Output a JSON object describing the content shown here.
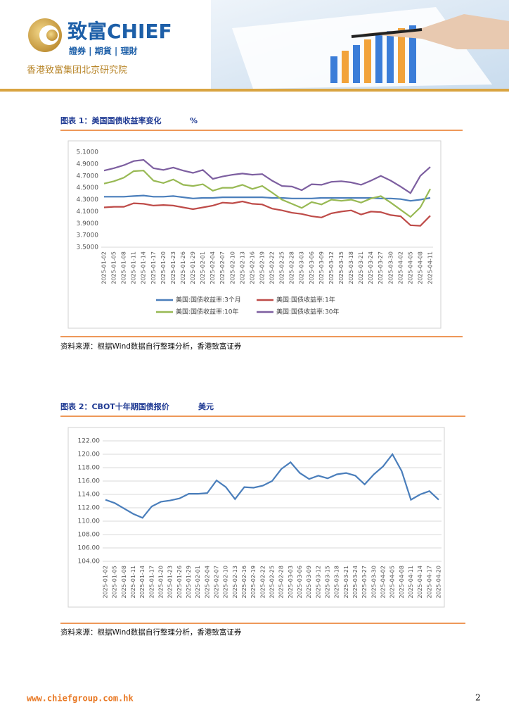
{
  "header": {
    "brand": "致富CHIEF",
    "tagline": "證券 | 期貨 | 理財",
    "institute": "香港致富集团北京研究院"
  },
  "chart_data": [
    {
      "type": "line",
      "title": "图表 1：美国国债收益率变化",
      "unit": "%",
      "categories": [
        "2025-01-02",
        "2025-01-05",
        "2025-01-08",
        "2025-01-11",
        "2025-01-14",
        "2025-01-17",
        "2025-01-20",
        "2025-01-23",
        "2025-01-26",
        "2025-01-29",
        "2025-02-01",
        "2025-02-04",
        "2025-02-07",
        "2025-02-10",
        "2025-02-13",
        "2025-02-16",
        "2025-02-19",
        "2025-02-22",
        "2025-02-25",
        "2025-02-28",
        "2025-03-03",
        "2025-03-06",
        "2025-03-09",
        "2025-03-12",
        "2025-03-15",
        "2025-03-18",
        "2025-03-21",
        "2025-03-24",
        "2025-03-27",
        "2025-03-30",
        "2025-04-02",
        "2025-04-05",
        "2025-04-08",
        "2025-04-11"
      ],
      "series": [
        {
          "name": "美国:国债收益率:3个月",
          "color": "#4a7ebb",
          "values": [
            4.35,
            4.35,
            4.35,
            4.36,
            4.37,
            4.35,
            4.35,
            4.36,
            4.34,
            4.32,
            4.33,
            4.33,
            4.34,
            4.34,
            4.34,
            4.34,
            4.34,
            4.33,
            4.33,
            4.32,
            4.32,
            4.32,
            4.33,
            4.33,
            4.33,
            4.33,
            4.33,
            4.33,
            4.32,
            4.32,
            4.31,
            4.28,
            4.3,
            4.33
          ]
        },
        {
          "name": "美国:国债收益率:1年",
          "color": "#be4b48",
          "values": [
            4.17,
            4.18,
            4.18,
            4.24,
            4.23,
            4.2,
            4.21,
            4.2,
            4.17,
            4.14,
            4.17,
            4.2,
            4.25,
            4.24,
            4.27,
            4.23,
            4.22,
            4.15,
            4.12,
            4.08,
            4.06,
            4.02,
            4.0,
            4.07,
            4.1,
            4.12,
            4.05,
            4.1,
            4.09,
            4.04,
            4.02,
            3.87,
            3.86,
            4.03
          ]
        },
        {
          "name": "美国:国债收益率:10年",
          "color": "#98b954",
          "values": [
            4.57,
            4.61,
            4.67,
            4.78,
            4.79,
            4.62,
            4.58,
            4.64,
            4.55,
            4.53,
            4.56,
            4.45,
            4.5,
            4.5,
            4.55,
            4.48,
            4.53,
            4.42,
            4.3,
            4.23,
            4.16,
            4.26,
            4.22,
            4.3,
            4.28,
            4.3,
            4.25,
            4.32,
            4.36,
            4.25,
            4.13,
            4.01,
            4.17,
            4.48
          ]
        },
        {
          "name": "美国:国债收益率:30年",
          "color": "#7d5fa0",
          "values": [
            4.79,
            4.83,
            4.88,
            4.95,
            4.97,
            4.83,
            4.8,
            4.84,
            4.79,
            4.75,
            4.8,
            4.65,
            4.69,
            4.72,
            4.74,
            4.72,
            4.73,
            4.62,
            4.53,
            4.52,
            4.46,
            4.56,
            4.55,
            4.6,
            4.61,
            4.59,
            4.55,
            4.62,
            4.7,
            4.62,
            4.52,
            4.41,
            4.7,
            4.85
          ]
        }
      ],
      "ylim": [
        3.5,
        5.1
      ],
      "yticks": [
        {
          "value": 3.5,
          "label": "3.5000"
        },
        {
          "value": 3.7,
          "label": "3.7000"
        },
        {
          "value": 3.9,
          "label": "3.9000"
        },
        {
          "value": 4.1,
          "label": "4.1000"
        },
        {
          "value": 4.3,
          "label": "4.3000"
        },
        {
          "value": 4.5,
          "label": "4.5000"
        },
        {
          "value": 4.7,
          "label": "4.7000"
        },
        {
          "value": 4.9,
          "label": "4.9000"
        },
        {
          "value": 5.1,
          "label": "5.1000"
        }
      ],
      "grid": false,
      "legend": "bottom",
      "source": "资料来源：根据Wind数据自行整理分析，香港致富证券"
    },
    {
      "type": "line",
      "title": "图表 2：CBOT十年期国债报价",
      "unit": "美元",
      "categories": [
        "2025-01-02",
        "2025-01-05",
        "2025-01-08",
        "2025-01-11",
        "2025-01-14",
        "2025-01-17",
        "2025-01-20",
        "2025-01-23",
        "2025-01-26",
        "2025-01-29",
        "2025-02-01",
        "2025-02-04",
        "2025-02-07",
        "2025-02-10",
        "2025-02-13",
        "2025-02-16",
        "2025-02-19",
        "2025-02-22",
        "2025-02-25",
        "2025-02-28",
        "2025-03-03",
        "2025-03-06",
        "2025-03-09",
        "2025-03-12",
        "2025-03-15",
        "2025-03-18",
        "2025-03-21",
        "2025-03-24",
        "2025-03-27",
        "2025-03-30",
        "2025-04-02",
        "2025-04-05",
        "2025-04-08",
        "2025-04-11",
        "2025-04-14",
        "2025-04-17",
        "2025-04-20"
      ],
      "values": [
        113.2,
        112.7,
        111.9,
        111.1,
        110.5,
        112.2,
        112.9,
        113.1,
        113.4,
        114.1,
        114.1,
        114.2,
        116.1,
        115.1,
        113.3,
        115.1,
        115.0,
        115.3,
        116.0,
        117.8,
        118.8,
        117.2,
        116.3,
        116.8,
        116.4,
        117.0,
        117.2,
        116.8,
        115.5,
        117.0,
        118.2,
        120.0,
        117.5,
        113.2,
        114.0,
        114.5,
        113.2
      ],
      "color": "#4a7ebb",
      "ylim": [
        104,
        122
      ],
      "yticks": [
        {
          "value": 104,
          "label": "104.00"
        },
        {
          "value": 106,
          "label": "106.00"
        },
        {
          "value": 108,
          "label": "108.00"
        },
        {
          "value": 110,
          "label": "110.00"
        },
        {
          "value": 112,
          "label": "112.00"
        },
        {
          "value": 114,
          "label": "114.00"
        },
        {
          "value": 116,
          "label": "116.00"
        },
        {
          "value": 118,
          "label": "118.00"
        },
        {
          "value": 120,
          "label": "120.00"
        },
        {
          "value": 122,
          "label": "122.00"
        }
      ],
      "grid": true,
      "source": "资料来源：根据Wind数据自行整理分析，香港致富证券"
    }
  ],
  "footer": {
    "url": "www.chiefgroup.com.hk",
    "page": 2
  }
}
